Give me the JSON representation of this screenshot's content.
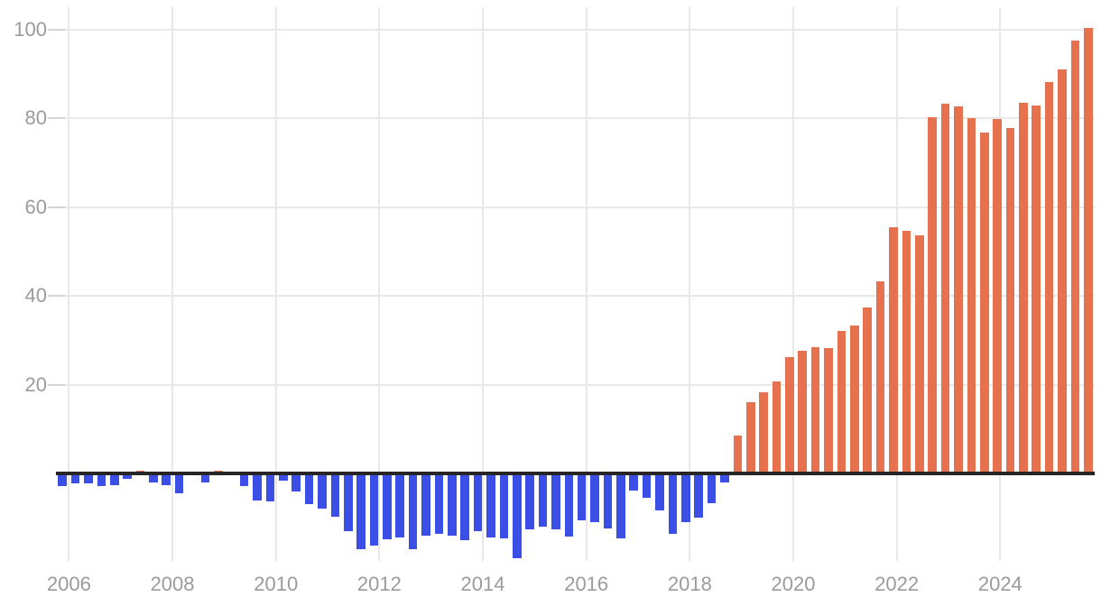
{
  "chart_data": {
    "type": "bar",
    "title": "",
    "xlabel": "",
    "ylabel": "",
    "legend": false,
    "grid": true,
    "ylim": [
      -21,
      105
    ],
    "y_ticks": [
      20,
      40,
      60,
      80,
      100
    ],
    "x_tick_labels": [
      "2006",
      "2008",
      "2010",
      "2012",
      "2014",
      "2016",
      "2018",
      "2020",
      "2022",
      "2024"
    ],
    "categories": [
      "2005 Q4",
      "2006 Q1",
      "2006 Q2",
      "2006 Q3",
      "2006 Q4",
      "2007 Q1",
      "2007 Q2",
      "2007 Q3",
      "2007 Q4",
      "2008 Q1",
      "2008 Q2",
      "2008 Q3",
      "2008 Q4",
      "2009 Q1",
      "2009 Q2",
      "2009 Q3",
      "2009 Q4",
      "2010 Q1",
      "2010 Q2",
      "2010 Q3",
      "2010 Q4",
      "2011 Q1",
      "2011 Q2",
      "2011 Q3",
      "2011 Q4",
      "2012 Q1",
      "2012 Q2",
      "2012 Q3",
      "2012 Q4",
      "2013 Q1",
      "2013 Q2",
      "2013 Q3",
      "2013 Q4",
      "2014 Q1",
      "2014 Q2",
      "2014 Q3",
      "2014 Q4",
      "2015 Q1",
      "2015 Q2",
      "2015 Q3",
      "2015 Q4",
      "2016 Q1",
      "2016 Q2",
      "2016 Q3",
      "2016 Q4",
      "2017 Q1",
      "2017 Q2",
      "2017 Q3",
      "2017 Q4",
      "2018 Q1",
      "2018 Q2",
      "2018 Q3",
      "2018 Q4",
      "2019 Q1",
      "2019 Q2",
      "2019 Q3",
      "2019 Q4",
      "2020 Q1",
      "2020 Q2",
      "2020 Q3",
      "2020 Q4",
      "2021 Q1",
      "2021 Q2",
      "2021 Q3",
      "2021 Q4",
      "2022 Q1",
      "2022 Q2",
      "2022 Q3",
      "2022 Q4",
      "2023 Q1",
      "2023 Q2",
      "2023 Q3",
      "2023 Q4",
      "2024 Q1",
      "2024 Q2",
      "2024 Q3",
      "2024 Q4",
      "2025 Q1",
      "2025 Q2",
      "2025 Q3"
    ],
    "values": [
      -2.9,
      -2.2,
      -2.2,
      -2.9,
      -2.6,
      -1.2,
      0.6,
      -2.0,
      -2.6,
      -4.5,
      0.0,
      -2.0,
      0.7,
      0.0,
      -2.9,
      -6.0,
      -6.2,
      -1.7,
      -4.1,
      -7.0,
      -8.0,
      -9.8,
      -13.0,
      -17.1,
      -16.3,
      -14.9,
      -14.4,
      -17.1,
      -14.1,
      -13.7,
      -14.1,
      -15.1,
      -13.0,
      -14.5,
      -14.6,
      -19.2,
      -12.7,
      -11.9,
      -12.7,
      -14.2,
      -10.5,
      -11.0,
      -12.3,
      -14.6,
      -3.9,
      -5.4,
      -8.3,
      -13.7,
      -11.0,
      -10.0,
      -6.8,
      -2.0,
      8.5,
      16.0,
      18.3,
      20.8,
      26.2,
      27.6,
      28.5,
      28.2,
      32.1,
      33.3,
      37.3,
      43.2,
      55.4,
      54.7,
      53.7,
      80.3,
      83.3,
      82.8,
      80.1,
      76.8,
      79.8,
      77.8,
      83.6,
      83.0,
      88.2,
      91.0,
      97.6,
      100.4
    ],
    "colors": {
      "bar_positive": "#e6714e",
      "bar_negative": "#3b4fe6",
      "grid": "#e8e8e8",
      "axis_tick": "#d4d4d4",
      "axis_label": "#9b9b9b",
      "zero_line": "#262626",
      "background": "#ffffff"
    }
  }
}
